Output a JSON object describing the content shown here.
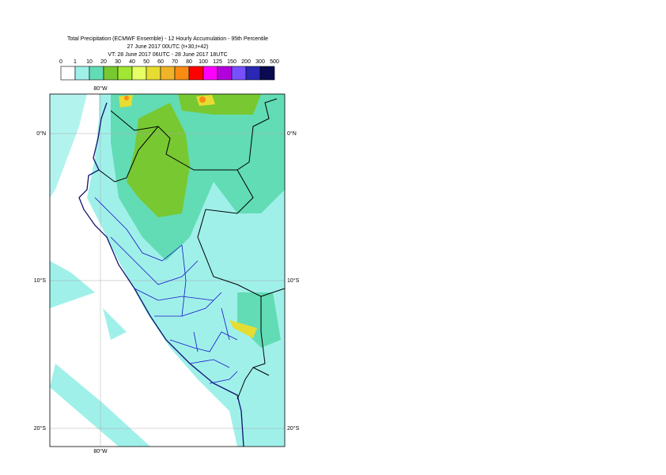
{
  "header": {
    "title": "Total Precipitation (ECMWF Ensemble) - 12 Hourly Accumulation - 95th Percentile",
    "run": "27 June 2017 00UTC (t+30,t+42)",
    "valid": "VT: 28 June 2017 06UTC - 28 June 2017 18UTC"
  },
  "legend": {
    "levels": [
      "0",
      "1",
      "10",
      "20",
      "30",
      "40",
      "50",
      "60",
      "70",
      "80",
      "100",
      "125",
      "150",
      "200",
      "300",
      "500"
    ],
    "colors": [
      "#ffffff",
      "#a0f0ea",
      "#62dcb4",
      "#78c832",
      "#a0e632",
      "#e6ff64",
      "#e6dc32",
      "#f0b428",
      "#fa8c14",
      "#ff0000",
      "#ff00ff",
      "#b400dc",
      "#7850ff",
      "#2828b4",
      "#0a0a50"
    ]
  },
  "map": {
    "lon_label_top": "80°W",
    "lon_label_bottom": "80°W",
    "lat_labels": [
      "0°N",
      "10°S",
      "20°S"
    ]
  }
}
